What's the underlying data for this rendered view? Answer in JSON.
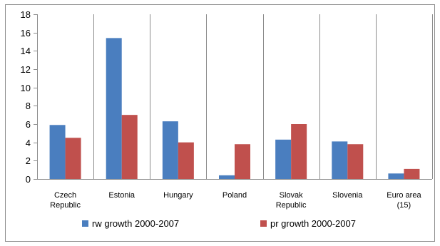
{
  "chart_data": {
    "type": "bar",
    "categories": [
      [
        "Czech",
        "Republic"
      ],
      [
        "Estonia"
      ],
      [
        "Hungary"
      ],
      [
        "Poland"
      ],
      [
        "Slovak",
        "Republic"
      ],
      [
        "Slovenia"
      ],
      [
        "Euro area",
        "(15)"
      ]
    ],
    "series": [
      {
        "name": "rw growth 2000-2007",
        "color": "#4a7ebf",
        "values": [
          5.9,
          15.4,
          6.3,
          0.4,
          4.3,
          4.1,
          0.6
        ]
      },
      {
        "name": "pr growth 2000-2007",
        "color": "#c0504d",
        "values": [
          4.5,
          7.0,
          4.0,
          3.8,
          6.0,
          3.8,
          1.1
        ]
      }
    ],
    "ylim": [
      0,
      18
    ],
    "yticks": [
      0,
      2,
      4,
      6,
      8,
      10,
      12,
      14,
      16,
      18
    ],
    "grid": "vertical category separators",
    "legend": "bottom"
  }
}
